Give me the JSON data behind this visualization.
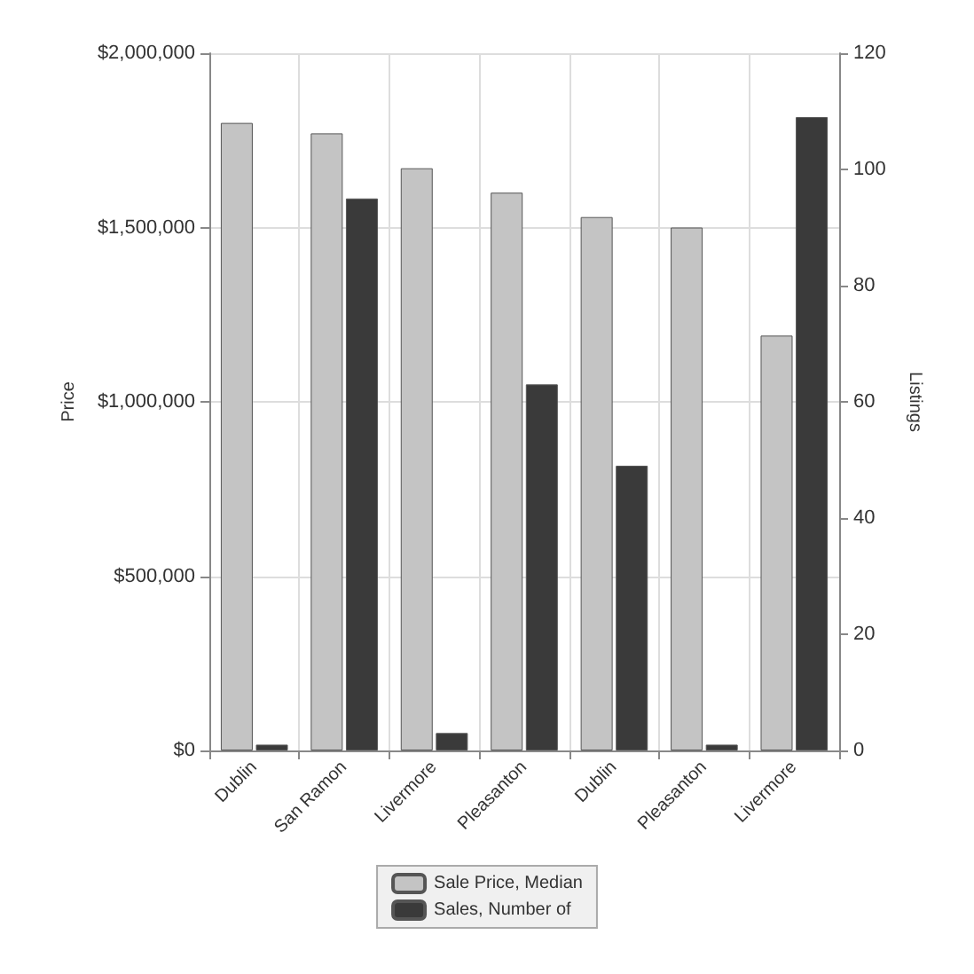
{
  "chart_data": {
    "type": "bar",
    "ylabel": "Price",
    "y2label": "Listings",
    "categories": [
      "Dublin",
      "San Ramon",
      "Livermore",
      "Pleasanton",
      "Dublin",
      "Pleasanton",
      "Livermore"
    ],
    "series": [
      {
        "name": "Sale Price, Median",
        "color": "#c4c4c4",
        "values": [
          1800000,
          1770000,
          1670000,
          1600000,
          1530000,
          1500000,
          1190000
        ]
      },
      {
        "name": "Sales, Number of",
        "color": "#3a3a3a",
        "axis": "y2",
        "values": [
          1,
          95,
          3,
          63,
          49,
          1,
          109
        ]
      }
    ],
    "ylim": [
      0,
      2000000
    ],
    "yticks": [
      {
        "value": 0,
        "label": "$0"
      },
      {
        "value": 500000,
        "label": "$500,000"
      },
      {
        "value": 1000000,
        "label": "$1,000,000"
      },
      {
        "value": 1500000,
        "label": "$1,500,000"
      },
      {
        "value": 2000000,
        "label": "$2,000,000"
      }
    ],
    "y2lim": [
      0,
      120
    ],
    "y2ticks": [
      0,
      20,
      40,
      60,
      80,
      100,
      120
    ],
    "grid": true,
    "legend": "bottom"
  }
}
